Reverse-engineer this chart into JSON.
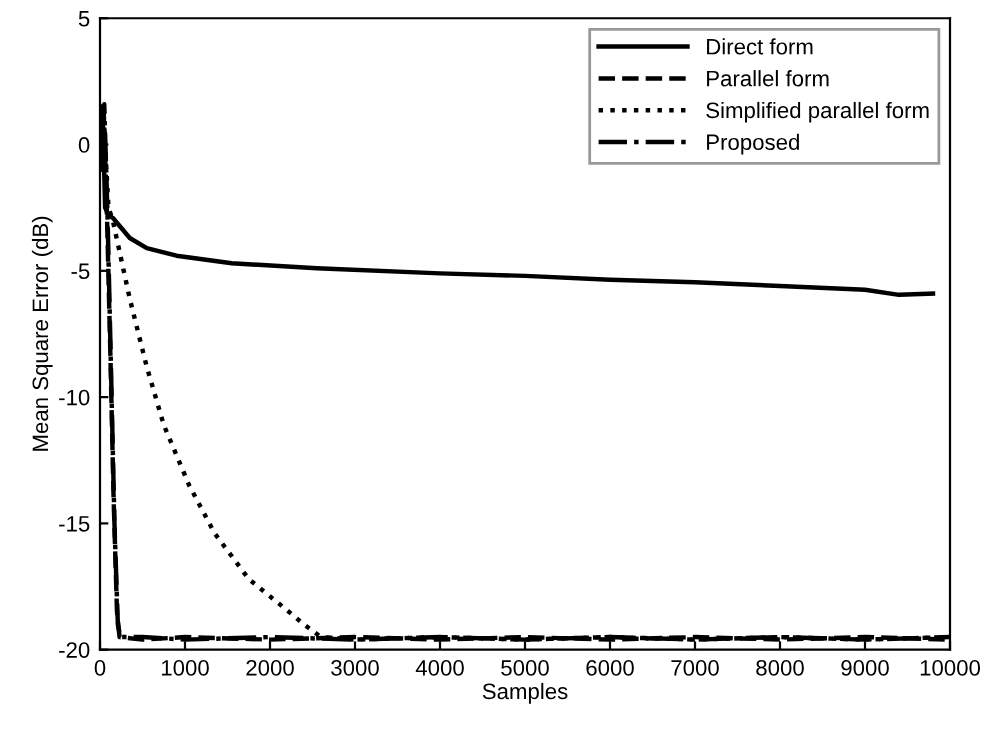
{
  "chart_data": {
    "type": "line",
    "xlabel": "Samples",
    "ylabel": "Mean Square Error (dB)",
    "xlim": [
      0,
      10000
    ],
    "xticks": [
      0,
      1000,
      2000,
      3000,
      4000,
      5000,
      6000,
      7000,
      8000,
      9000,
      10000
    ],
    "ylim": [
      -20,
      5
    ],
    "yticks": [
      -20,
      -15,
      -10,
      -5,
      0,
      5
    ],
    "legend": "top right",
    "grid": false,
    "series": [
      {
        "name": "Direct form",
        "color": "#000000",
        "line_style": "solid",
        "x": [
          0,
          30,
          60,
          100,
          150,
          350,
          550,
          900,
          1550,
          2550,
          4000,
          5000,
          6000,
          7000,
          8000,
          9000,
          9400,
          9800
        ],
        "values": [
          -1,
          1.5,
          -2.5,
          -2.8,
          -2.9,
          -3.7,
          -4.1,
          -4.4,
          -4.7,
          -4.9,
          -5.1,
          -5.2,
          -5.35,
          -5.45,
          -5.6,
          -5.75,
          -5.95,
          -5.9
        ]
      },
      {
        "name": "Parallel form",
        "color": "#000000",
        "line_style": "dashed",
        "x": [
          0,
          40,
          80,
          120,
          160,
          200,
          230,
          500,
          1000,
          2000,
          3000,
          4000,
          5000,
          6000,
          7000,
          8000,
          9000,
          10000
        ],
        "values": [
          -1,
          1.7,
          -2.5,
          -8,
          -14,
          -18.5,
          -19.5,
          -19.6,
          -19.5,
          -19.6,
          -19.5,
          -19.6,
          -19.5,
          -19.6,
          -19.5,
          -19.6,
          -19.5,
          -19.6
        ]
      },
      {
        "name": "Simplified parallel form",
        "color": "#000000",
        "line_style": "dotted",
        "x": [
          0,
          40,
          100,
          150,
          350,
          550,
          750,
          1050,
          1350,
          1750,
          2150,
          2400,
          2600,
          3000,
          4000,
          5000,
          6000,
          7000,
          8000,
          9000,
          10000
        ],
        "values": [
          -1,
          1.2,
          -2.5,
          -3,
          -6.1,
          -8.8,
          -11.1,
          -13.5,
          -15.4,
          -17.2,
          -18.3,
          -19,
          -19.5,
          -19.6,
          -19.5,
          -19.6,
          -19.5,
          -19.6,
          -19.5,
          -19.6,
          -19.5
        ]
      },
      {
        "name": "Proposed",
        "color": "#000000",
        "line_style": "dashdot",
        "x": [
          0,
          50,
          90,
          130,
          170,
          210,
          240,
          500,
          1000,
          2000,
          3000,
          4000,
          5000,
          6000,
          7000,
          8000,
          9000,
          10000
        ],
        "values": [
          -1,
          1.6,
          -3,
          -9,
          -15,
          -19,
          -19.5,
          -19.5,
          -19.6,
          -19.5,
          -19.6,
          -19.5,
          -19.6,
          -19.5,
          -19.6,
          -19.5,
          -19.6,
          -19.5
        ]
      }
    ]
  }
}
